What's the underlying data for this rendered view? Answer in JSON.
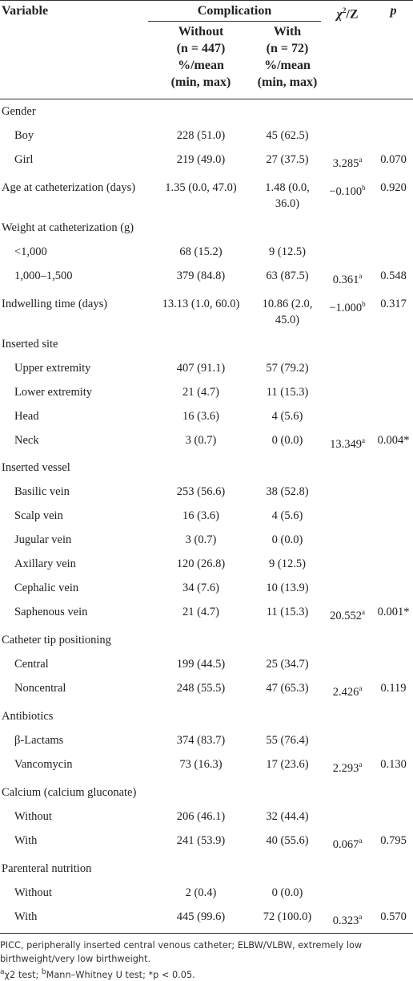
{
  "header": {
    "variable": "Variable",
    "complication": "Complication",
    "stat": {
      "symbol": "χ",
      "sup": "2",
      "rest": "/Z"
    },
    "p": "p",
    "without": [
      "Without",
      "(n = 447)",
      "%/mean",
      "(min, max)"
    ],
    "with": [
      "With",
      "(n = 72)",
      "%/mean",
      "(min, max)"
    ]
  },
  "rows": [
    {
      "label": "Gender",
      "items": [
        {
          "variable": "Boy",
          "without": "228 (51.0)",
          "with": "45 (62.5)"
        },
        {
          "variable": "Girl",
          "without": "219 (49.0)",
          "with": "27 (37.5)",
          "stat": "3.285",
          "stat_sup": "a",
          "p": "0.070"
        }
      ]
    },
    {
      "variable": "Age at catheterization (days)",
      "without": "1.35 (0.0, 47.0)",
      "with": "1.48 (0.0, 36.0)",
      "stat": "−0.100",
      "stat_sup": "b",
      "p": "0.920"
    },
    {
      "label": "Weight at catheterization (g)",
      "items": [
        {
          "variable": "<1,000",
          "without": "68 (15.2)",
          "with": "9 (12.5)"
        },
        {
          "variable": "1,000–1,500",
          "without": "379 (84.8)",
          "with": "63 (87.5)",
          "stat": "0.361",
          "stat_sup": "a",
          "p": "0.548"
        }
      ]
    },
    {
      "variable": "Indwelling time (days)",
      "without": "13.13 (1.0, 60.0)",
      "with": "10.86 (2.0, 45.0)",
      "stat": "−1.000",
      "stat_sup": "b",
      "p": "0.317"
    },
    {
      "label": "Inserted site",
      "items": [
        {
          "variable": "Upper extremity",
          "without": "407 (91.1)",
          "with": "57 (79.2)"
        },
        {
          "variable": "Lower extremity",
          "without": "21 (4.7)",
          "with": "11 (15.3)"
        },
        {
          "variable": "Head",
          "without": "16 (3.6)",
          "with": "4 (5.6)"
        },
        {
          "variable": "Neck",
          "without": "3 (0.7)",
          "with": "0 (0.0)",
          "stat": "13.349",
          "stat_sup": "a",
          "p": "0.004*"
        }
      ]
    },
    {
      "label": "Inserted vessel",
      "items": [
        {
          "variable": "Basilic vein",
          "without": "253 (56.6)",
          "with": "38 (52.8)"
        },
        {
          "variable": "Scalp vein",
          "without": "16 (3.6)",
          "with": "4 (5.6)"
        },
        {
          "variable": "Jugular vein",
          "without": "3 (0.7)",
          "with": "0 (0.0)"
        },
        {
          "variable": "Axillary vein",
          "without": "120 (26.8)",
          "with": "9 (12.5)"
        },
        {
          "variable": "Cephalic vein",
          "without": "34 (7.6)",
          "with": "10 (13.9)"
        },
        {
          "variable": "Saphenous vein",
          "without": "21 (4.7)",
          "with": "11 (15.3)",
          "stat": "20.552",
          "stat_sup": "a",
          "p": "0.001*"
        }
      ]
    },
    {
      "label": "Catheter tip positioning",
      "items": [
        {
          "variable": "Central",
          "without": "199 (44.5)",
          "with": "25 (34.7)"
        },
        {
          "variable": "Noncentral",
          "without": "248 (55.5)",
          "with": "47 (65.3)",
          "stat": "2.426",
          "stat_sup": "a",
          "p": "0.119"
        }
      ]
    },
    {
      "label": "Antibiotics",
      "items": [
        {
          "variable": "β-Lactams",
          "without": "374 (83.7)",
          "with": "55 (76.4)"
        },
        {
          "variable": "Vancomycin",
          "without": "73 (16.3)",
          "with": "17 (23.6)",
          "stat": "2.293",
          "stat_sup": "a",
          "p": "0.130"
        }
      ]
    },
    {
      "label": "Calcium (calcium gluconate)",
      "items": [
        {
          "variable": "Without",
          "without": "206 (46.1)",
          "with": "32 (44.4)"
        },
        {
          "variable": "With",
          "without": "241 (53.9)",
          "with": "40 (55.6)",
          "stat": "0.067",
          "stat_sup": "a",
          "p": "0.795"
        }
      ]
    },
    {
      "label": "Parenteral nutrition",
      "items": [
        {
          "variable": "Without",
          "without": "2 (0.4)",
          "with": "0 (0.0)"
        },
        {
          "variable": "With",
          "without": "445 (99.6)",
          "with": "72 (100.0)",
          "stat": "0.323",
          "stat_sup": "a",
          "p": "0.570"
        }
      ]
    }
  ],
  "footnote": {
    "abbrev": "PICC, peripherally inserted central venous catheter; ELBW/VLBW, extremely low birthweight/very low birthweight.",
    "notes": [
      {
        "sup": "a",
        "text": "χ2 test; "
      },
      {
        "sup": "b",
        "text": "Mann–Whitney U test; *p < 0.05."
      }
    ]
  }
}
